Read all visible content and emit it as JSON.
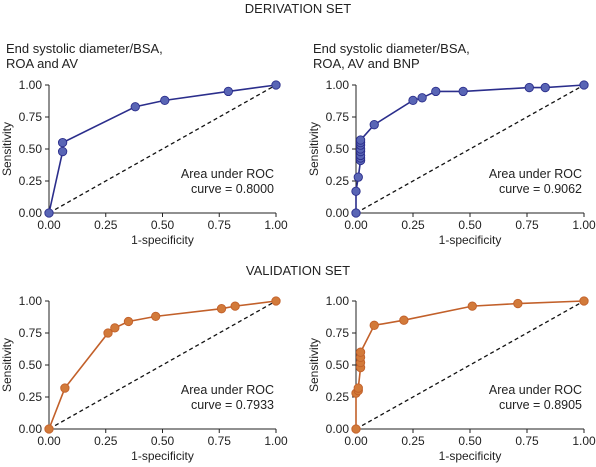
{
  "sections": {
    "derivation": "DERIVATION SET",
    "validation": "VALIDATION SET"
  },
  "colors": {
    "derivation_line": "#2b2e8c",
    "derivation_marker": "#5965b5",
    "validation_line": "#c2602a",
    "validation_marker": "#d27a3a",
    "reference": "#111111"
  },
  "chart_data": [
    {
      "type": "line",
      "panel": "derivation-left",
      "title": [
        "End systolic diameter/BSA,",
        "ROA and AV"
      ],
      "xlabel": "1-specificity",
      "ylabel": "Sensitivity",
      "xlim": [
        0,
        1
      ],
      "ylim": [
        0,
        1
      ],
      "xticks": [
        "0.00",
        "0.25",
        "0.50",
        "0.75",
        "1.00"
      ],
      "yticks": [
        "0.00",
        "0.25",
        "0.50",
        "0.75",
        "1.00"
      ],
      "annotation": [
        "Area under ROC",
        "curve = 0.8000"
      ],
      "series": [
        {
          "x": [
            0.0,
            0.06,
            0.06,
            0.38,
            0.51,
            0.79,
            1.0
          ],
          "y": [
            0.0,
            0.48,
            0.55,
            0.83,
            0.88,
            0.95,
            1.0
          ]
        }
      ],
      "reference_line": [
        [
          0,
          0
        ],
        [
          1,
          1
        ]
      ]
    },
    {
      "type": "line",
      "panel": "derivation-right",
      "title": [
        "End systolic diameter/BSA,",
        "ROA, AV and BNP"
      ],
      "xlabel": "1-specificity",
      "ylabel": "Sensitivity",
      "xlim": [
        0,
        1
      ],
      "ylim": [
        0,
        1
      ],
      "xticks": [
        "0.00",
        "0.25",
        "0.50",
        "0.75",
        "1.00"
      ],
      "yticks": [
        "0.00",
        "0.25",
        "0.50",
        "0.75",
        "1.00"
      ],
      "annotation": [
        "Area under ROC",
        "curve = 0.9062"
      ],
      "series": [
        {
          "x": [
            0.0,
            0.0,
            0.01,
            0.02,
            0.02,
            0.02,
            0.02,
            0.02,
            0.02,
            0.02,
            0.02,
            0.08,
            0.25,
            0.29,
            0.35,
            0.47,
            0.76,
            0.83,
            1.0
          ],
          "y": [
            0.0,
            0.17,
            0.28,
            0.41,
            0.43,
            0.45,
            0.48,
            0.5,
            0.53,
            0.55,
            0.57,
            0.69,
            0.88,
            0.9,
            0.95,
            0.95,
            0.98,
            0.98,
            1.0
          ]
        }
      ],
      "reference_line": [
        [
          0,
          0
        ],
        [
          1,
          1
        ]
      ]
    },
    {
      "type": "line",
      "panel": "validation-left",
      "title": [],
      "xlabel": "1-specificity",
      "ylabel": "Sensitivity",
      "xlim": [
        0,
        1
      ],
      "ylim": [
        0,
        1
      ],
      "xticks": [
        "0.00",
        "0.25",
        "0.50",
        "0.75",
        "1.00"
      ],
      "yticks": [
        "0.00",
        "0.25",
        "0.50",
        "0.75",
        "1.00"
      ],
      "annotation": [
        "Area under ROC",
        "curve = 0.7933"
      ],
      "series": [
        {
          "x": [
            0.0,
            0.07,
            0.26,
            0.29,
            0.35,
            0.47,
            0.76,
            0.82,
            1.0
          ],
          "y": [
            0.0,
            0.32,
            0.75,
            0.79,
            0.84,
            0.88,
            0.94,
            0.96,
            1.0
          ]
        }
      ],
      "reference_line": [
        [
          0,
          0
        ],
        [
          1,
          1
        ]
      ]
    },
    {
      "type": "line",
      "panel": "validation-right",
      "title": [],
      "xlabel": "1-specificity",
      "ylabel": "Sensitivity",
      "xlim": [
        0,
        1
      ],
      "ylim": [
        0,
        1
      ],
      "xticks": [
        "0.00",
        "0.25",
        "0.50",
        "0.75",
        "1.00"
      ],
      "yticks": [
        "0.00",
        "0.25",
        "0.50",
        "0.75",
        "1.00"
      ],
      "annotation": [
        "Area under ROC",
        "curve = 0.8905"
      ],
      "series": [
        {
          "x": [
            0.0,
            0.0,
            0.01,
            0.01,
            0.02,
            0.02,
            0.02,
            0.02,
            0.08,
            0.21,
            0.51,
            0.71,
            1.0
          ],
          "y": [
            0.0,
            0.28,
            0.3,
            0.32,
            0.48,
            0.52,
            0.56,
            0.6,
            0.81,
            0.85,
            0.96,
            0.98,
            1.0
          ]
        }
      ],
      "reference_line": [
        [
          0,
          0
        ],
        [
          1,
          1
        ]
      ]
    }
  ]
}
